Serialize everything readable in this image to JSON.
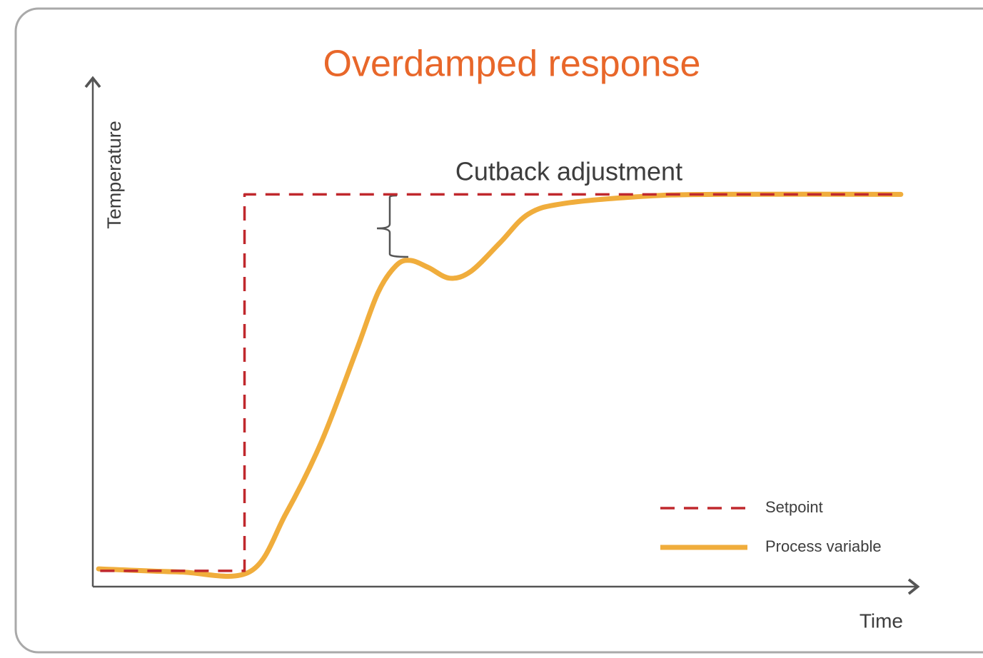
{
  "chart_data": {
    "type": "line",
    "title": "Overdamped response",
    "x_label": "Time",
    "y_label": "Temperature",
    "annotation": "Cutback adjustment",
    "xlim": [
      0,
      100
    ],
    "ylim": [
      0,
      100
    ],
    "legend": "bottom-right",
    "series": [
      {
        "name": "Setpoint",
        "color": "#c0282d",
        "style": "dashed",
        "x": [
          0.9,
          18.4,
          18.4,
          98
        ],
        "values": [
          3.1,
          3.1,
          77.2,
          77.2
        ]
      },
      {
        "name": "Process variable",
        "color": "#f0ad3c",
        "style": "solid",
        "x": [
          0.7,
          10.4,
          19.0,
          23.4,
          27.7,
          32.0,
          34.6,
          36.8,
          38.5,
          40.7,
          43.3,
          45.9,
          49.4,
          52.8,
          57.1,
          66.7,
          75.3,
          98.0
        ],
        "values": [
          3.5,
          2.9,
          2.9,
          14.3,
          28.4,
          46.6,
          57.9,
          63.2,
          64.2,
          62.8,
          60.7,
          62.1,
          67.7,
          73.3,
          75.4,
          76.8,
          77.2,
          77.2
        ]
      }
    ]
  }
}
